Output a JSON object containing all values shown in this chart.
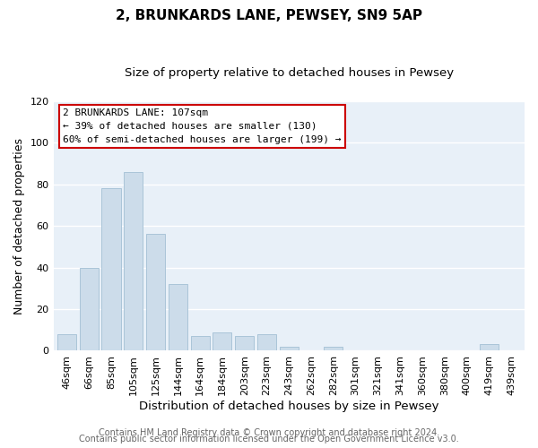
{
  "title": "2, BRUNKARDS LANE, PEWSEY, SN9 5AP",
  "subtitle": "Size of property relative to detached houses in Pewsey",
  "xlabel": "Distribution of detached houses by size in Pewsey",
  "ylabel": "Number of detached properties",
  "bar_labels": [
    "46sqm",
    "66sqm",
    "85sqm",
    "105sqm",
    "125sqm",
    "144sqm",
    "164sqm",
    "184sqm",
    "203sqm",
    "223sqm",
    "243sqm",
    "262sqm",
    "282sqm",
    "301sqm",
    "321sqm",
    "341sqm",
    "360sqm",
    "380sqm",
    "400sqm",
    "419sqm",
    "439sqm"
  ],
  "bar_values": [
    8,
    40,
    78,
    86,
    56,
    32,
    7,
    9,
    7,
    8,
    2,
    0,
    2,
    0,
    0,
    0,
    0,
    0,
    0,
    3,
    0
  ],
  "bar_color": "#ccdcea",
  "bar_edge_color": "#aac4d8",
  "ylim": [
    0,
    120
  ],
  "yticks": [
    0,
    20,
    40,
    60,
    80,
    100,
    120
  ],
  "annotation_title": "2 BRUNKARDS LANE: 107sqm",
  "annotation_line1": "← 39% of detached houses are smaller (130)",
  "annotation_line2": "60% of semi-detached houses are larger (199) →",
  "annotation_box_color": "#ffffff",
  "annotation_box_edge": "#cc0000",
  "footer_line1": "Contains HM Land Registry data © Crown copyright and database right 2024.",
  "footer_line2": "Contains public sector information licensed under the Open Government Licence v3.0.",
  "fig_background": "#ffffff",
  "plot_background": "#e8f0f8",
  "grid_color": "#ffffff",
  "title_fontsize": 11,
  "subtitle_fontsize": 9.5,
  "xlabel_fontsize": 9.5,
  "ylabel_fontsize": 9,
  "tick_fontsize": 8,
  "annotation_fontsize": 8,
  "footer_fontsize": 7
}
